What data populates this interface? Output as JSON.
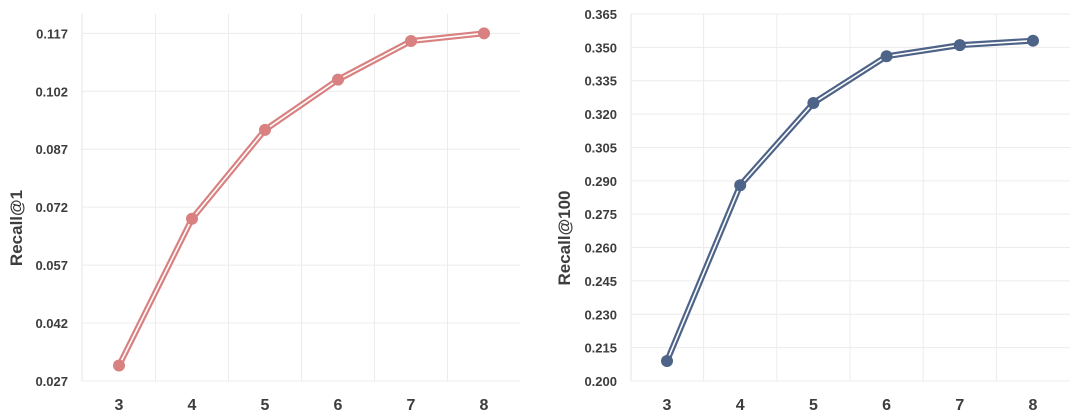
{
  "chart_data": [
    {
      "type": "line",
      "title": "",
      "xlabel": "",
      "ylabel": "Recall@1",
      "x": [
        3,
        4,
        5,
        6,
        7,
        8
      ],
      "series": [
        {
          "values": [
            0.031,
            0.069,
            0.092,
            0.105,
            0.115,
            0.117
          ],
          "color": "#D98080"
        }
      ],
      "ylim": [
        0.027,
        0.122
      ],
      "y_ticks": [
        "0.027",
        "0.042",
        "0.057",
        "0.072",
        "0.087",
        "0.102",
        "0.117"
      ],
      "x_ticks": [
        "3",
        "4",
        "5",
        "6",
        "7",
        "8"
      ],
      "grid": true,
      "legend": "none",
      "line_style": "double"
    },
    {
      "type": "line",
      "title": "",
      "xlabel": "",
      "ylabel": "Recall@100",
      "x": [
        3,
        4,
        5,
        6,
        7,
        8
      ],
      "series": [
        {
          "values": [
            0.209,
            0.288,
            0.325,
            0.346,
            0.351,
            0.353
          ],
          "color": "#4E6388"
        }
      ],
      "ylim": [
        0.2,
        0.365
      ],
      "y_ticks": [
        "0.200",
        "0.215",
        "0.230",
        "0.245",
        "0.260",
        "0.275",
        "0.290",
        "0.305",
        "0.320",
        "0.335",
        "0.350",
        "0.365"
      ],
      "x_ticks": [
        "3",
        "4",
        "5",
        "6",
        "7",
        "8"
      ],
      "grid": true,
      "legend": "none",
      "line_style": "double"
    }
  ]
}
